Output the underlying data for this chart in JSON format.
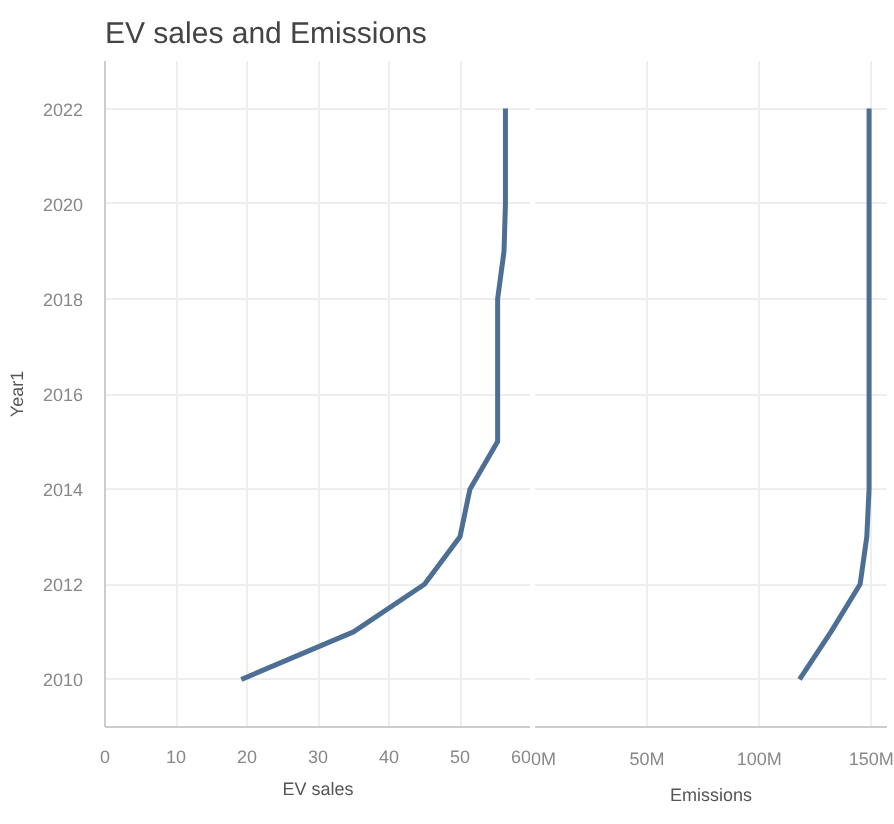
{
  "chart_data": [
    {
      "type": "line",
      "title": "EV sales and Emissions",
      "xlabel": "EV sales",
      "ylabel": "Year1",
      "orientation": "horizontal",
      "grid": true,
      "x": [
        2010,
        2011,
        2012,
        2013,
        2014,
        2015,
        2016,
        2017,
        2018,
        2019,
        2020,
        2021,
        2022
      ],
      "series": [
        {
          "color": "#4e6f94",
          "values": [
            19.2,
            35,
            45,
            50,
            51.4,
            55.3,
            55.3,
            55.3,
            55.3,
            56.2,
            56.4,
            56.4,
            56.4
          ]
        }
      ],
      "xlim": [
        0,
        60
      ],
      "xticks": [
        0,
        10,
        20,
        30,
        40,
        50,
        60
      ],
      "ylim": [
        2009,
        2023
      ],
      "yticks": [
        2010,
        2012,
        2014,
        2016,
        2018,
        2020,
        2022
      ]
    },
    {
      "type": "line",
      "xlabel": "Emissions",
      "orientation": "horizontal",
      "grid": true,
      "tick_labels": "x",
      "x": [
        2010,
        2011,
        2012,
        2013,
        2014,
        2015,
        2016,
        2017,
        2018,
        2019,
        2020,
        2021,
        2022
      ],
      "series": [
        {
          "color": "#4e6f94",
          "values": [
            118000000,
            132000000,
            145000000,
            148000000,
            149000000,
            149000000,
            149000000,
            149000000,
            149000000,
            149000000,
            149000000,
            149000000,
            149000000
          ]
        }
      ],
      "xlim": [
        0,
        157000000
      ],
      "xticks": [
        {
          "value": 0,
          "label": "0M"
        },
        {
          "value": 50000000,
          "label": "50M"
        },
        {
          "value": 100000000,
          "label": "100M"
        },
        {
          "value": 150000000,
          "label": "150M"
        }
      ],
      "ylim": [
        2009,
        2023
      ],
      "yticks": [
        2010,
        2012,
        2014,
        2016,
        2018,
        2020,
        2022
      ]
    }
  ]
}
